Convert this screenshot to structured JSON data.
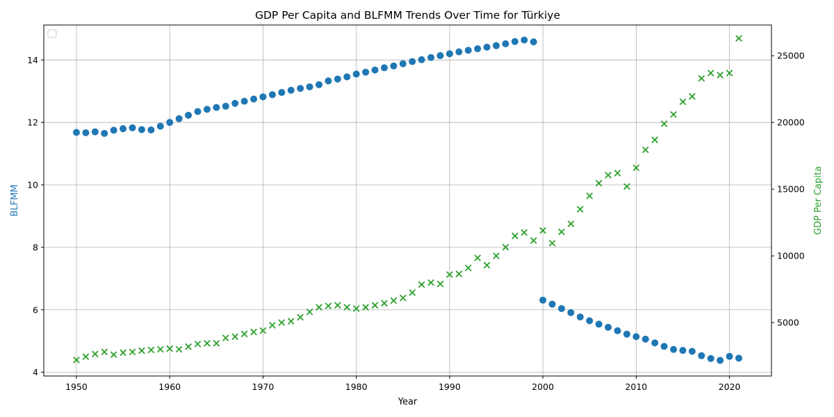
{
  "chart_data": {
    "type": "scatter",
    "title": "GDP Per Capita and BLFMM Trends Over Time for Türkiye",
    "xlabel": "Year",
    "ylabel_left": "BLFMM",
    "ylabel_right": "GDP Per Capita",
    "xlim": [
      1946.5,
      2024.5
    ],
    "ylim_left": [
      3.88,
      15.12
    ],
    "ylim_right": [
      1000,
      27300
    ],
    "x_ticks": [
      1950,
      1960,
      1970,
      1980,
      1990,
      2000,
      2010,
      2020
    ],
    "y_left_ticks": [
      4,
      6,
      8,
      10,
      12,
      14
    ],
    "y_right_ticks": [
      5000,
      10000,
      15000,
      20000,
      25000
    ],
    "grid": true,
    "legend": "top-left (empty)",
    "colors": {
      "blfmm": "#1f77b4",
      "gdp": "#2ca02c"
    },
    "blfmm": {
      "marker": "circle",
      "x": [
        1950,
        1951,
        1952,
        1953,
        1954,
        1955,
        1956,
        1957,
        1958,
        1959,
        1960,
        1961,
        1962,
        1963,
        1964,
        1965,
        1966,
        1967,
        1968,
        1969,
        1970,
        1971,
        1972,
        1973,
        1974,
        1975,
        1976,
        1977,
        1978,
        1979,
        1980,
        1981,
        1982,
        1983,
        1984,
        1985,
        1986,
        1987,
        1988,
        1989,
        1990,
        1991,
        1992,
        1993,
        1994,
        1995,
        1996,
        1997,
        1998,
        1999,
        2000,
        2001,
        2002,
        2003,
        2004,
        2005,
        2006,
        2007,
        2008,
        2009,
        2010,
        2011,
        2012,
        2013,
        2014,
        2015,
        2016,
        2017,
        2018,
        2019,
        2020,
        2021
      ],
      "y": [
        11.68,
        11.67,
        11.7,
        11.65,
        11.75,
        11.8,
        11.83,
        11.77,
        11.76,
        11.88,
        12.0,
        12.12,
        12.23,
        12.35,
        12.42,
        12.48,
        12.52,
        12.61,
        12.68,
        12.75,
        12.82,
        12.89,
        12.96,
        13.03,
        13.09,
        13.14,
        13.21,
        13.33,
        13.39,
        13.46,
        13.55,
        13.61,
        13.68,
        13.75,
        13.81,
        13.88,
        13.95,
        14.01,
        14.08,
        14.14,
        14.2,
        14.26,
        14.31,
        14.36,
        14.41,
        14.46,
        14.52,
        14.59,
        14.64,
        14.58,
        6.31,
        6.18,
        6.04,
        5.91,
        5.77,
        5.65,
        5.54,
        5.44,
        5.33,
        5.22,
        5.14,
        5.06,
        4.94,
        4.83,
        4.73,
        4.7,
        4.67,
        4.53,
        4.44,
        4.38,
        4.51,
        4.45
      ]
    },
    "gdp": {
      "marker": "x",
      "x": [
        1950,
        1951,
        1952,
        1953,
        1954,
        1955,
        1956,
        1957,
        1958,
        1959,
        1960,
        1961,
        1962,
        1963,
        1964,
        1965,
        1966,
        1967,
        1968,
        1969,
        1970,
        1971,
        1972,
        1973,
        1974,
        1975,
        1976,
        1977,
        1978,
        1979,
        1980,
        1981,
        1982,
        1983,
        1984,
        1985,
        1986,
        1987,
        1988,
        1989,
        1990,
        1991,
        1992,
        1993,
        1994,
        1995,
        1996,
        1997,
        1998,
        1999,
        2000,
        2001,
        2002,
        2003,
        2004,
        2005,
        2006,
        2007,
        2008,
        2009,
        2010,
        2011,
        2012,
        2013,
        2014,
        2015,
        2016,
        2017,
        2018,
        2019,
        2020,
        2021
      ],
      "y": [
        2200,
        2450,
        2650,
        2800,
        2600,
        2750,
        2800,
        2900,
        2950,
        3000,
        3050,
        3000,
        3200,
        3400,
        3450,
        3450,
        3850,
        3950,
        4150,
        4300,
        4400,
        4800,
        5000,
        5100,
        5400,
        5800,
        6150,
        6250,
        6300,
        6150,
        6050,
        6150,
        6300,
        6450,
        6650,
        6850,
        7250,
        7850,
        8000,
        7900,
        8600,
        8650,
        9100,
        9850,
        9300,
        10000,
        10650,
        11500,
        11750,
        11150,
        11900,
        10950,
        11800,
        12400,
        13500,
        14500,
        15450,
        16050,
        16200,
        15200,
        16600,
        17950,
        18700,
        19900,
        20600,
        21550,
        21950,
        23300,
        23700,
        23550,
        23700,
        26300
      ]
    }
  }
}
